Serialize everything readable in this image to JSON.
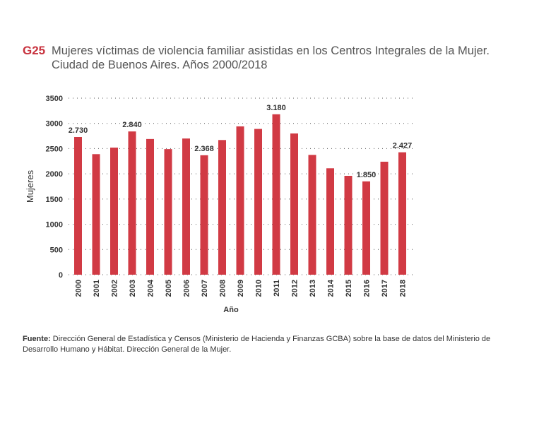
{
  "header": {
    "code": "G25",
    "title_line1": "Mujeres víctimas de violencia familiar asistidas en los Centros Integrales de la Mujer.",
    "title_line2": "Ciudad de Buenos Aires. Años 2000/2018"
  },
  "colors": {
    "bar": "#d13a44",
    "accent": "#c8323e",
    "grid": "#555555"
  },
  "chart_data": {
    "type": "bar",
    "categories": [
      "2000",
      "2001",
      "2002",
      "2003",
      "2004",
      "2005",
      "2006",
      "2007",
      "2008",
      "2009",
      "2010",
      "2011",
      "2012",
      "2013",
      "2014",
      "2015",
      "2016",
      "2017",
      "2018"
    ],
    "values": [
      2730,
      2390,
      2520,
      2840,
      2690,
      2490,
      2700,
      2368,
      2670,
      2940,
      2890,
      3180,
      2800,
      2375,
      2110,
      1960,
      1850,
      2240,
      2427
    ],
    "data_labels": {
      "0": "2.730",
      "3": "2.840",
      "7": "2.368",
      "11": "3.180",
      "16": "1.850",
      "18": "2.427"
    },
    "yticks": [
      0,
      500,
      1000,
      1500,
      2000,
      2500,
      3000,
      3500
    ],
    "ylim": [
      0,
      3500
    ],
    "ylabel": "Mujeres",
    "xlabel": "Año",
    "grid": true
  },
  "source": {
    "label": "Fuente:",
    "text": " Dirección General de Estadística y Censos (Ministerio de Hacienda y Finanzas GCBA) sobre la base de datos del Ministerio de Desarrollo Humano y Hábitat. Dirección General de la Mujer."
  }
}
